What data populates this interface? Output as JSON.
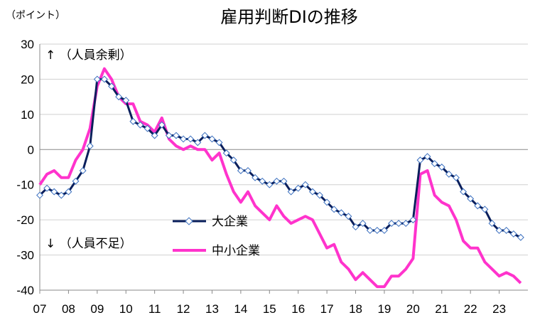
{
  "chart_data": {
    "type": "line",
    "title": "雇用判断DIの推移",
    "ylabel": "（ポイント）",
    "xlabel": "",
    "ylim": [
      -40,
      30
    ],
    "yticks": [
      30,
      20,
      10,
      0,
      -10,
      -20,
      -30,
      -40
    ],
    "xticks": [
      "07",
      "08",
      "09",
      "10",
      "11",
      "12",
      "13",
      "14",
      "15",
      "16",
      "17",
      "18",
      "19",
      "20",
      "21",
      "22",
      "23"
    ],
    "xrange": [
      2007.0,
      2024.0
    ],
    "annotations": {
      "upper": "↑ （人員余剰）",
      "lower": "↓ （人員不足）"
    },
    "legend": [
      "大企業",
      "中小企業"
    ],
    "series": [
      {
        "name": "大企業",
        "color": "#0a1f5c",
        "marker": "diamond",
        "x": [
          2007.0,
          2007.25,
          2007.5,
          2007.75,
          2008.0,
          2008.25,
          2008.5,
          2008.75,
          2009.0,
          2009.25,
          2009.5,
          2009.75,
          2010.0,
          2010.25,
          2010.5,
          2010.75,
          2011.0,
          2011.25,
          2011.5,
          2011.75,
          2012.0,
          2012.25,
          2012.5,
          2012.75,
          2013.0,
          2013.25,
          2013.5,
          2013.75,
          2014.0,
          2014.25,
          2014.5,
          2014.75,
          2015.0,
          2015.25,
          2015.5,
          2015.75,
          2016.0,
          2016.25,
          2016.5,
          2016.75,
          2017.0,
          2017.25,
          2017.5,
          2017.75,
          2018.0,
          2018.25,
          2018.5,
          2018.75,
          2019.0,
          2019.25,
          2019.5,
          2019.75,
          2020.0,
          2020.25,
          2020.5,
          2020.75,
          2021.0,
          2021.25,
          2021.5,
          2021.75,
          2022.0,
          2022.25,
          2022.5,
          2022.75,
          2023.0,
          2023.25,
          2023.5,
          2023.75
        ],
        "y": [
          -13,
          -11,
          -12,
          -13,
          -12,
          -9,
          -6,
          1,
          20,
          20,
          18,
          15,
          14,
          8,
          7,
          6,
          4,
          7,
          4,
          4,
          3,
          3,
          2,
          4,
          3,
          2,
          -1,
          -3,
          -6,
          -6,
          -8,
          -9,
          -10,
          -9,
          -9,
          -12,
          -11,
          -10,
          -12,
          -13,
          -15,
          -17,
          -18,
          -19,
          -22,
          -21,
          -23,
          -23,
          -23,
          -21,
          -21,
          -21,
          -20,
          -3,
          -2,
          -4,
          -5,
          -7,
          -8,
          -12,
          -14,
          -16,
          -17,
          -21,
          -23,
          -23,
          -24,
          -25
        ]
      },
      {
        "name": "中小企業",
        "color": "#ff33cc",
        "marker": "none",
        "x": [
          2007.0,
          2007.25,
          2007.5,
          2007.75,
          2008.0,
          2008.25,
          2008.5,
          2008.75,
          2009.0,
          2009.25,
          2009.5,
          2009.75,
          2010.0,
          2010.25,
          2010.5,
          2010.75,
          2011.0,
          2011.25,
          2011.5,
          2011.75,
          2012.0,
          2012.25,
          2012.5,
          2012.75,
          2013.0,
          2013.25,
          2013.5,
          2013.75,
          2014.0,
          2014.25,
          2014.5,
          2014.75,
          2015.0,
          2015.25,
          2015.5,
          2015.75,
          2016.0,
          2016.25,
          2016.5,
          2016.75,
          2017.0,
          2017.25,
          2017.5,
          2017.75,
          2018.0,
          2018.25,
          2018.5,
          2018.75,
          2019.0,
          2019.25,
          2019.5,
          2019.75,
          2020.0,
          2020.25,
          2020.5,
          2020.75,
          2021.0,
          2021.25,
          2021.5,
          2021.75,
          2022.0,
          2022.25,
          2022.5,
          2022.75,
          2023.0,
          2023.25,
          2023.5,
          2023.75
        ],
        "y": [
          -10,
          -7,
          -6,
          -8,
          -8,
          -3,
          0,
          6,
          18,
          23,
          20,
          15,
          13,
          13,
          8,
          7,
          5,
          9,
          3,
          1,
          0,
          1,
          0,
          0,
          -3,
          -1,
          -7,
          -12,
          -15,
          -12,
          -16,
          -18,
          -20,
          -16,
          -19,
          -21,
          -20,
          -19,
          -20,
          -24,
          -28,
          -27,
          -32,
          -34,
          -37,
          -35,
          -37,
          -39,
          -39,
          -36,
          -36,
          -34,
          -31,
          -7,
          -6,
          -13,
          -15,
          -16,
          -20,
          -26,
          -28,
          -28,
          -32,
          -34,
          -36,
          -35,
          -36,
          -38
        ]
      }
    ]
  }
}
